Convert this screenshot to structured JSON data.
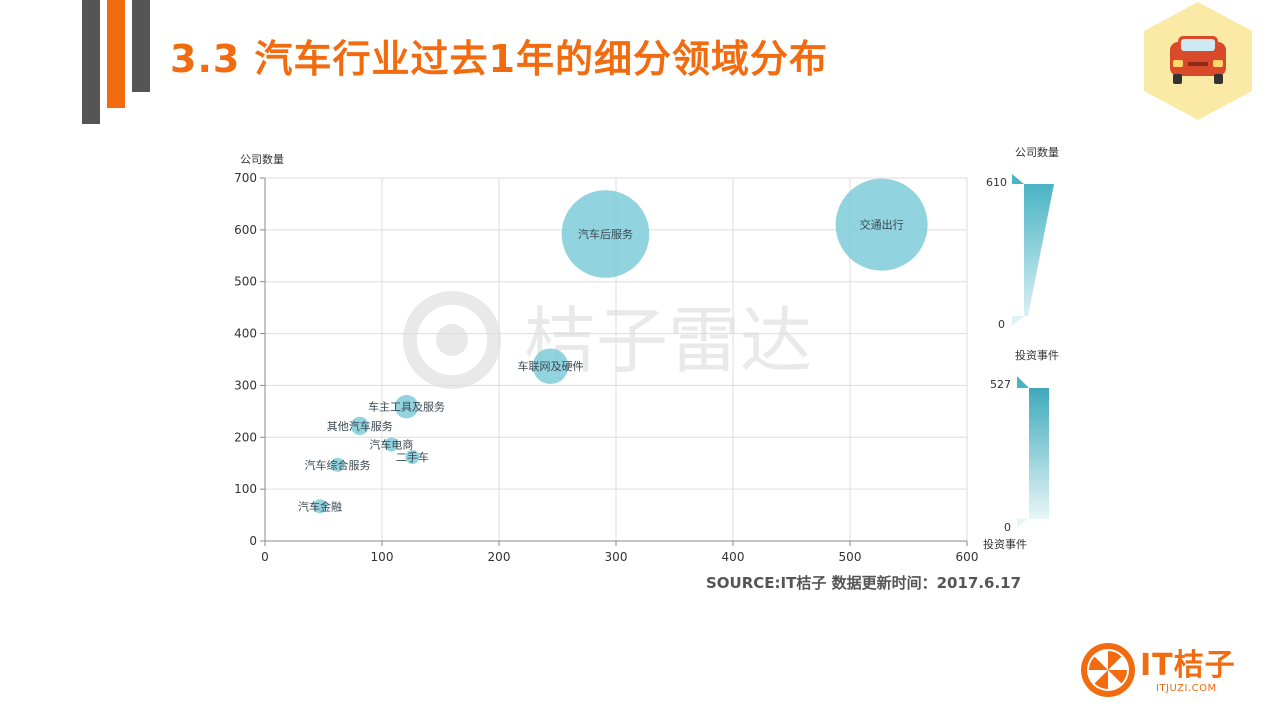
{
  "title": "3.3  汽车行业过去1年的细分领域分布",
  "source_note": "SOURCE:IT桔子 数据更新时间：2017.6.17",
  "watermark_text": "桔子雷达",
  "brand": {
    "name": "IT桔子",
    "url": "ITJUZI.COM"
  },
  "icons": {
    "badge": "car-icon",
    "logo": "orange-slice-icon"
  },
  "colors": {
    "accent": "#f26b0f",
    "bubble": "#7ecbd8",
    "dark_bar": "#555555",
    "badge_bg": "#fbe9a6"
  },
  "chart_data": {
    "type": "scatter",
    "title": "",
    "xlabel": "",
    "ylabel": "公司数量",
    "xlim": [
      0,
      600
    ],
    "ylim": [
      0,
      700
    ],
    "x_ticks": [
      "0",
      "100",
      "200",
      "300",
      "400",
      "500",
      "600"
    ],
    "y_ticks": [
      "0",
      "100",
      "200",
      "300",
      "400",
      "500",
      "600",
      "700"
    ],
    "grid": true,
    "points": [
      {
        "label": "交通出行",
        "x": 527,
        "y": 610
      },
      {
        "label": "汽车后服务",
        "x": 291,
        "y": 592
      },
      {
        "label": "车联网及硬件",
        "x": 244,
        "y": 337
      },
      {
        "label": "车主工具及服务",
        "x": 121,
        "y": 259
      },
      {
        "label": "其他汽车服务",
        "x": 81,
        "y": 222
      },
      {
        "label": "汽车电商",
        "x": 108,
        "y": 186
      },
      {
        "label": "二手车",
        "x": 126,
        "y": 162
      },
      {
        "label": "汽车综合服务",
        "x": 62,
        "y": 147
      },
      {
        "label": "汽车金融",
        "x": 47,
        "y": 67
      }
    ],
    "size_legend": {
      "title": "公司数量",
      "max": "610",
      "min": "0"
    },
    "color_legend": {
      "title": "投资事件",
      "max": "527",
      "min": "0",
      "bottom_label": "投资事件"
    }
  }
}
